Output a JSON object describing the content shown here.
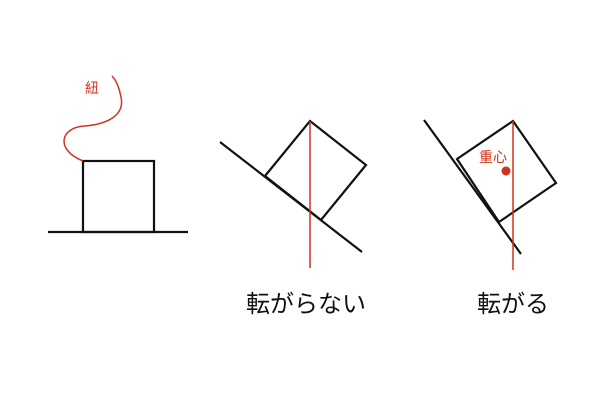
{
  "colors": {
    "line": "#111111",
    "accent": "#d0321e",
    "background": "#ffffff"
  },
  "panels": [
    {
      "name": "string-hang",
      "labels": {
        "string": "紐"
      }
    },
    {
      "name": "stable-on-slope",
      "caption": "転がらない"
    },
    {
      "name": "tips-over-on-slope",
      "labels": {
        "center_of_gravity": "重心"
      },
      "caption": "転がる"
    }
  ]
}
